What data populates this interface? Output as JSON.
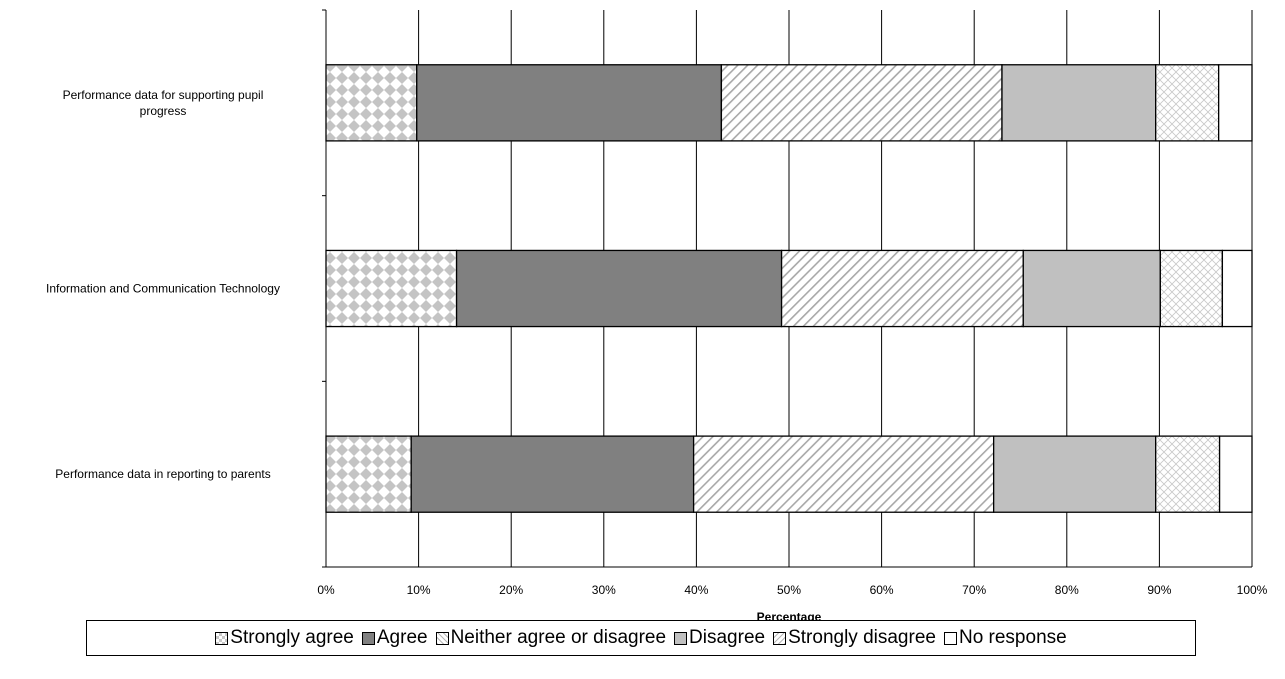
{
  "chart_data": {
    "type": "bar",
    "orientation": "horizontal",
    "stacked": "percent",
    "categories": [
      "Performance data for supporting pupil progress",
      "Information and Communication Technology",
      "Performance data in reporting to parents"
    ],
    "series": [
      {
        "name": "Strongly agree",
        "values": [
          9.8,
          14.1,
          9.2
        ]
      },
      {
        "name": "Agree",
        "values": [
          32.9,
          35.1,
          30.5
        ]
      },
      {
        "name": "Neither agree or disagree",
        "values": [
          30.3,
          26.1,
          32.4
        ]
      },
      {
        "name": "Disagree",
        "values": [
          16.6,
          14.8,
          17.5
        ]
      },
      {
        "name": "Strongly disagree",
        "values": [
          6.8,
          6.7,
          6.9
        ]
      },
      {
        "name": "No response",
        "values": [
          3.6,
          3.2,
          3.5
        ]
      }
    ],
    "xlabel": "Percentage",
    "ylabel": "",
    "xlim": [
      0,
      100
    ],
    "x_ticks": [
      "0%",
      "10%",
      "20%",
      "30%",
      "40%",
      "50%",
      "60%",
      "70%",
      "80%",
      "90%",
      "100%"
    ],
    "grid": true,
    "legend_position": "bottom",
    "colors": [
      "#ffffff",
      "#808080",
      "#ffffff",
      "#c0c0c0",
      "#ffffff",
      "#ffffff"
    ],
    "patterns": [
      "diamond-checker",
      "solid",
      "diagonal-stripes",
      "solid",
      "diagonal-lattice",
      "none"
    ]
  }
}
